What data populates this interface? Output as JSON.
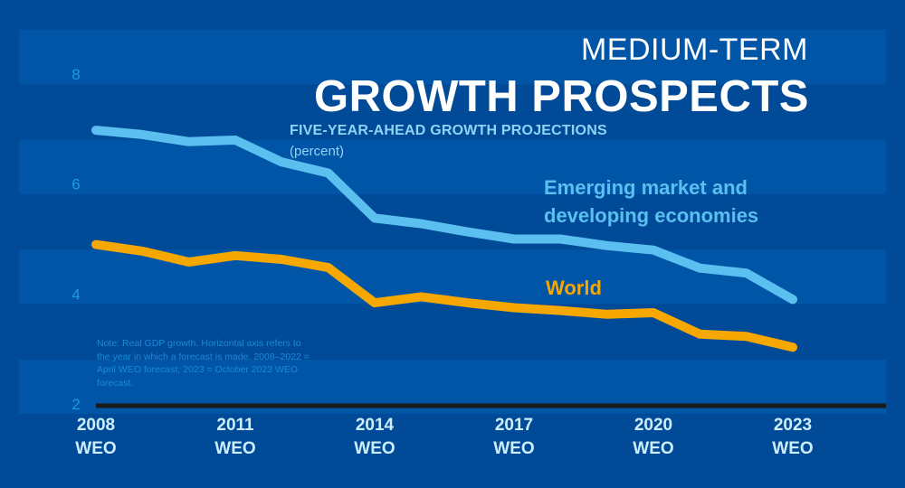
{
  "header": {
    "supertitle": "MEDIUM-TERM",
    "title": "GROWTH PROSPECTS",
    "subtitle": "FIVE-YEAR-AHEAD GROWTH PROJECTIONS",
    "units": "(percent)"
  },
  "note": "Note: Real GDP growth. Horizontal axis refers to the year in which a forecast is made. 2008–2022 = April WEO forecast; 2023 = October 2023 WEO forecast.",
  "colors": {
    "background": "#004a98",
    "band": "#0055a6",
    "emde": "#5bc0f0",
    "world": "#f6a800",
    "axis": "#1a1a1a",
    "ytick": "#1c9ce0",
    "xtick": "#cdeefd"
  },
  "chart_data": {
    "type": "line",
    "title": "MEDIUM-TERM GROWTH PROSPECTS",
    "subtitle": "FIVE-YEAR-AHEAD GROWTH PROJECTIONS (percent)",
    "xlabel": "",
    "ylabel": "percent",
    "x": [
      2008,
      2009,
      2010,
      2011,
      2012,
      2013,
      2014,
      2015,
      2016,
      2017,
      2018,
      2019,
      2020,
      2021,
      2022,
      2023
    ],
    "xticks": [
      {
        "value": 2008,
        "label": [
          "2008",
          "WEO"
        ]
      },
      {
        "value": 2011,
        "label": [
          "2011",
          "WEO"
        ]
      },
      {
        "value": 2014,
        "label": [
          "2014",
          "WEO"
        ]
      },
      {
        "value": 2017,
        "label": [
          "2017",
          "WEO"
        ]
      },
      {
        "value": 2020,
        "label": [
          "2020",
          "WEO"
        ]
      },
      {
        "value": 2023,
        "label": [
          "2023",
          "WEO"
        ]
      }
    ],
    "yticks": [
      2,
      4,
      6,
      8
    ],
    "ylim": [
      2,
      8
    ],
    "xlim": [
      2008,
      2025
    ],
    "grid": "alternating horizontal bands",
    "legend": "inline labels",
    "series": [
      {
        "name": "Emerging market and developing economies",
        "label_lines": [
          "Emerging market and",
          "developing economies"
        ],
        "color": "#5bc0f0",
        "values": [
          6.98,
          6.9,
          6.77,
          6.8,
          6.4,
          6.2,
          5.38,
          5.28,
          5.13,
          5.0,
          5.0,
          4.88,
          4.8,
          4.47,
          4.38,
          3.9
        ]
      },
      {
        "name": "World",
        "label_lines": [
          "World"
        ],
        "color": "#f6a800",
        "values": [
          4.9,
          4.78,
          4.58,
          4.7,
          4.63,
          4.48,
          3.84,
          3.95,
          3.84,
          3.75,
          3.7,
          3.63,
          3.66,
          3.27,
          3.23,
          3.03
        ]
      }
    ]
  }
}
